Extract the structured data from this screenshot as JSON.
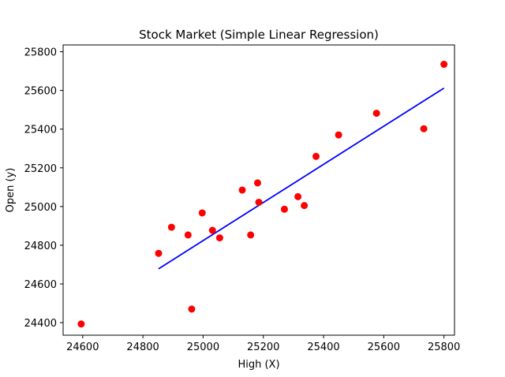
{
  "chart_data": {
    "type": "scatter",
    "title": "Stock Market (Simple Linear Regression)",
    "xlabel": "High (X)",
    "ylabel": "Open (y)",
    "xlim": [
      24535,
      25835
    ],
    "ylim": [
      24335,
      25835
    ],
    "xticks": [
      24600,
      24800,
      25000,
      25200,
      25400,
      25600,
      25800
    ],
    "yticks": [
      24400,
      24600,
      24800,
      25000,
      25200,
      25400,
      25600,
      25800
    ],
    "grid": false,
    "series": [
      {
        "kind": "scatter",
        "color": "#ff0000",
        "points": [
          {
            "x": 24595,
            "y": 24393
          },
          {
            "x": 24852,
            "y": 24758
          },
          {
            "x": 24895,
            "y": 24893
          },
          {
            "x": 24950,
            "y": 24853
          },
          {
            "x": 24962,
            "y": 24470
          },
          {
            "x": 24997,
            "y": 24967
          },
          {
            "x": 25031,
            "y": 24877
          },
          {
            "x": 25055,
            "y": 24838
          },
          {
            "x": 25130,
            "y": 25085
          },
          {
            "x": 25158,
            "y": 24853
          },
          {
            "x": 25181,
            "y": 25122
          },
          {
            "x": 25185,
            "y": 25022
          },
          {
            "x": 25270,
            "y": 24986
          },
          {
            "x": 25315,
            "y": 25051
          },
          {
            "x": 25336,
            "y": 25005
          },
          {
            "x": 25375,
            "y": 25259
          },
          {
            "x": 25450,
            "y": 25370
          },
          {
            "x": 25576,
            "y": 25482
          },
          {
            "x": 25733,
            "y": 25402
          },
          {
            "x": 25800,
            "y": 25735
          }
        ]
      },
      {
        "kind": "line",
        "color": "#0000ff",
        "points": [
          {
            "x": 24852,
            "y": 24678
          },
          {
            "x": 25800,
            "y": 25612
          }
        ]
      }
    ]
  }
}
